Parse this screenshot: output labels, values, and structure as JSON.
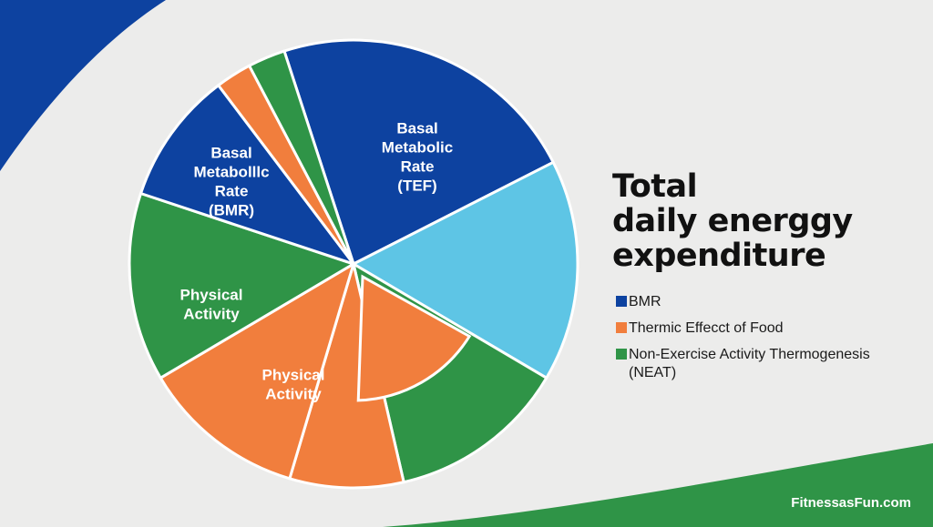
{
  "chart_data": {
    "type": "pie",
    "title_lines": [
      "Total",
      "daily  energgy",
      "expenditure"
    ],
    "slices": [
      {
        "label_lines": [
          "Basal",
          "Metabolic",
          "Rate",
          "(TEF)"
        ],
        "value": 22.5,
        "color": "#0d42a0"
      },
      {
        "label_lines": [],
        "value": 16.0,
        "color": "#5ec5e5"
      },
      {
        "label_lines": [],
        "value": 12.9,
        "color": "#2f9447"
      },
      {
        "label_lines": [],
        "value": 8.2,
        "color": "#f17e3d"
      },
      {
        "label_lines": [
          "Physical",
          "Activity"
        ],
        "value": 11.9,
        "color": "#f17e3d"
      },
      {
        "label_lines": [
          "Physical",
          "Activity"
        ],
        "value": 13.6,
        "color": "#2f9447"
      },
      {
        "label_lines": [
          "Basal",
          "Metabolllc",
          "Rate",
          "(BMR)"
        ],
        "value": 9.6,
        "color": "#0d42a0"
      },
      {
        "label_lines": [],
        "value": 2.6,
        "color": "#f17e3d"
      },
      {
        "label_lines": [],
        "value": 2.7,
        "color": "#2f9447"
      }
    ],
    "legend": [
      {
        "label": "BMR",
        "color": "#0d42a0"
      },
      {
        "label": "Thermic Effecct of Food",
        "color": "#f17e3d"
      },
      {
        "label": "Non-Exercise Activity Thermogenesis",
        "label2": "(NEAT)",
        "color": "#2f9447"
      }
    ],
    "legend_placement": "right"
  },
  "brand": {
    "text": "FitnessasFun.com"
  },
  "colors": {
    "background": "#ececeb",
    "accent_blue": "#0d42a0",
    "accent_green": "#2f9447"
  }
}
